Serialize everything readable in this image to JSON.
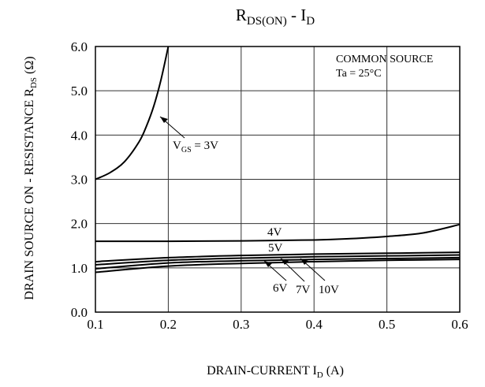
{
  "chart_data": {
    "type": "line",
    "title": {
      "main": "R",
      "sub": "DS(ON)",
      "mid": " - I",
      "sub2": "D"
    },
    "xlabel": {
      "pre": "DRAIN-CURRENT I",
      "sub": "D",
      "post": " (A)"
    },
    "ylabel": {
      "pre": "DRAIN SOURCE ON  - RESISTANCE R",
      "sub": "DS",
      "post": " (Ω)"
    },
    "xlim": [
      0.1,
      0.6
    ],
    "ylim": [
      0.0,
      6.0
    ],
    "xticks": [
      0.1,
      0.2,
      0.3,
      0.4,
      0.5,
      0.6
    ],
    "xtick_labels": [
      "0.1",
      "0.2",
      "0.3",
      "0.4",
      "0.5",
      "0.6"
    ],
    "yticks": [
      0,
      1,
      2,
      3,
      4,
      5,
      6
    ],
    "ytick_labels": [
      "0.0",
      "1.0",
      "2.0",
      "3.0",
      "4.0",
      "5.0",
      "6.0"
    ],
    "grid": true,
    "conditions": [
      "COMMON SOURCE",
      "Ta = 25°C"
    ],
    "series": [
      {
        "label": "V",
        "label_sub": "GS",
        "label_post": " = 3V",
        "x": [
          0.1,
          0.12,
          0.14,
          0.16,
          0.17,
          0.18,
          0.19,
          0.2
        ],
        "y": [
          3.0,
          3.15,
          3.4,
          3.85,
          4.2,
          4.65,
          5.25,
          6.0
        ]
      },
      {
        "label": "4V",
        "x": [
          0.1,
          0.2,
          0.3,
          0.4,
          0.45,
          0.5,
          0.55,
          0.6
        ],
        "y": [
          1.6,
          1.6,
          1.61,
          1.63,
          1.66,
          1.71,
          1.79,
          1.98
        ]
      },
      {
        "label": "5V",
        "x": [
          0.1,
          0.2,
          0.3,
          0.4,
          0.5,
          0.6
        ],
        "y": [
          1.14,
          1.23,
          1.28,
          1.31,
          1.33,
          1.35
        ]
      },
      {
        "label": "6V",
        "x": [
          0.1,
          0.2,
          0.3,
          0.4,
          0.5,
          0.6
        ],
        "y": [
          1.07,
          1.17,
          1.22,
          1.25,
          1.27,
          1.29
        ]
      },
      {
        "label": "7V",
        "x": [
          0.1,
          0.2,
          0.3,
          0.4,
          0.5,
          0.6
        ],
        "y": [
          0.98,
          1.11,
          1.16,
          1.19,
          1.21,
          1.23
        ]
      },
      {
        "label": "10V",
        "x": [
          0.1,
          0.2,
          0.3,
          0.4,
          0.5,
          0.6
        ],
        "y": [
          0.9,
          1.04,
          1.1,
          1.14,
          1.17,
          1.19
        ]
      }
    ]
  }
}
